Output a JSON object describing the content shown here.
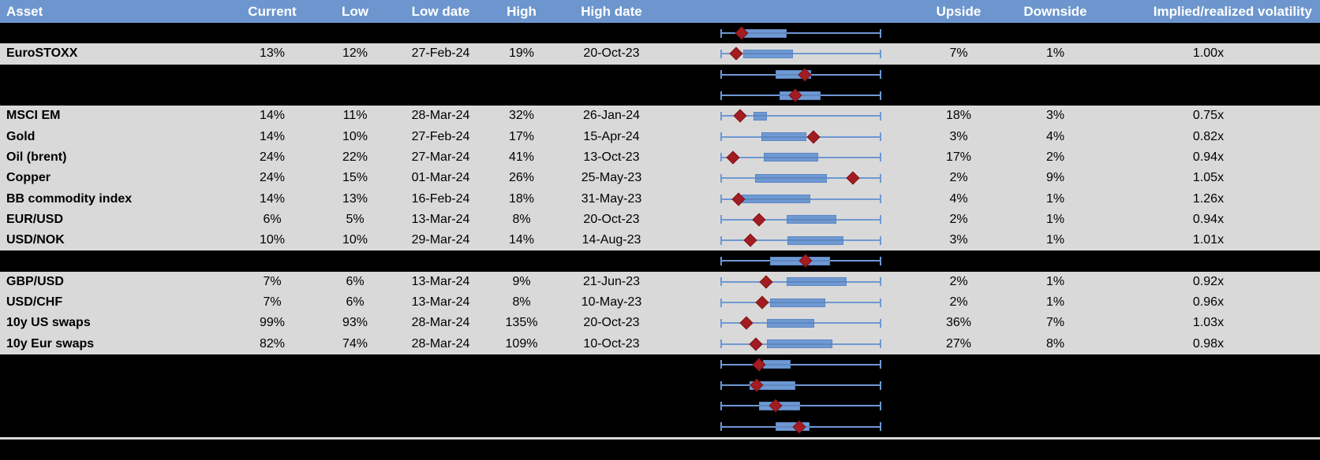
{
  "table": {
    "header": [
      "Asset",
      "Current",
      "Low",
      "Low date",
      "High",
      "High date",
      "",
      "Upside",
      "Downside",
      "Implied/realized volatility"
    ],
    "rows": [
      {
        "type": "dark",
        "asset": "",
        "current": "",
        "low": "",
        "low_date": "",
        "high": "",
        "high_date": "",
        "upside": "",
        "downside": "",
        "iv_rv": "",
        "chart": {
          "whisker_min": 0,
          "whisker_max": 1,
          "box_start": 0.147,
          "box_end": 0.412,
          "marker": 0.132
        }
      },
      {
        "type": "data",
        "asset": "EuroSTOXX",
        "current": "13%",
        "low": "12%",
        "low_date": "27-Feb-24",
        "high": "19%",
        "high_date": "20-Oct-23",
        "upside": "7%",
        "downside": "1%",
        "iv_rv": "1.00x",
        "chart": {
          "whisker_min": 0,
          "whisker_max": 1,
          "box_start": 0.142,
          "box_end": 0.451,
          "marker": 0.098
        }
      },
      {
        "type": "dark",
        "asset": "",
        "current": "",
        "low": "",
        "low_date": "",
        "high": "",
        "high_date": "",
        "upside": "",
        "downside": "",
        "iv_rv": "",
        "chart": {
          "whisker_min": 0,
          "whisker_max": 1,
          "box_start": 0.343,
          "box_end": 0.564,
          "marker": 0.525
        }
      },
      {
        "type": "dark",
        "asset": "",
        "current": "",
        "low": "",
        "low_date": "",
        "high": "",
        "high_date": "",
        "upside": "",
        "downside": "",
        "iv_rv": "",
        "chart": {
          "whisker_min": 0,
          "whisker_max": 1,
          "box_start": 0.368,
          "box_end": 0.623,
          "marker": 0.466
        }
      },
      {
        "type": "data",
        "asset": "MSCI EM",
        "current": "14%",
        "low": "11%",
        "low_date": "28-Mar-24",
        "high": "32%",
        "high_date": "26-Jan-24",
        "upside": "18%",
        "downside": "3%",
        "iv_rv": "0.75x",
        "chart": {
          "whisker_min": 0,
          "whisker_max": 1,
          "box_start": 0.206,
          "box_end": 0.289,
          "marker": 0.123
        }
      },
      {
        "type": "data",
        "asset": "Gold",
        "current": "14%",
        "low": "10%",
        "low_date": "27-Feb-24",
        "high": "17%",
        "high_date": "15-Apr-24",
        "upside": "3%",
        "downside": "4%",
        "iv_rv": "0.82x",
        "chart": {
          "whisker_min": 0,
          "whisker_max": 1,
          "box_start": 0.255,
          "box_end": 0.534,
          "marker": 0.578
        }
      },
      {
        "type": "data",
        "asset": "Oil (brent)",
        "current": "24%",
        "low": "22%",
        "low_date": "27-Mar-24",
        "high": "41%",
        "high_date": "13-Oct-23",
        "upside": "17%",
        "downside": "2%",
        "iv_rv": "0.94x",
        "chart": {
          "whisker_min": 0,
          "whisker_max": 1,
          "box_start": 0.27,
          "box_end": 0.608,
          "marker": 0.078
        }
      },
      {
        "type": "data",
        "asset": "Copper",
        "current": "24%",
        "low": "15%",
        "low_date": "01-Mar-24",
        "high": "26%",
        "high_date": "25-May-23",
        "upside": "2%",
        "downside": "9%",
        "iv_rv": "1.05x",
        "chart": {
          "whisker_min": 0,
          "whisker_max": 1,
          "box_start": 0.216,
          "box_end": 0.662,
          "marker": 0.824
        }
      },
      {
        "type": "data",
        "asset": "BB commodity index",
        "current": "14%",
        "low": "13%",
        "low_date": "16-Feb-24",
        "high": "18%",
        "high_date": "31-May-23",
        "upside": "4%",
        "downside": "1%",
        "iv_rv": "1.26x",
        "chart": {
          "whisker_min": 0,
          "whisker_max": 1,
          "box_start": 0.132,
          "box_end": 0.559,
          "marker": 0.113
        }
      },
      {
        "type": "data",
        "asset": "EUR/USD",
        "current": "6%",
        "low": "5%",
        "low_date": "13-Mar-24",
        "high": "8%",
        "high_date": "20-Oct-23",
        "upside": "2%",
        "downside": "1%",
        "iv_rv": "0.94x",
        "chart": {
          "whisker_min": 0,
          "whisker_max": 1,
          "box_start": 0.412,
          "box_end": 0.721,
          "marker": 0.24
        }
      },
      {
        "type": "data",
        "asset": "USD/NOK",
        "current": "10%",
        "low": "10%",
        "low_date": "29-Mar-24",
        "high": "14%",
        "high_date": "14-Aug-23",
        "upside": "3%",
        "downside": "1%",
        "iv_rv": "1.01x",
        "chart": {
          "whisker_min": 0,
          "whisker_max": 1,
          "box_start": 0.417,
          "box_end": 0.765,
          "marker": 0.186
        }
      },
      {
        "type": "dark",
        "asset": "",
        "current": "",
        "low": "",
        "low_date": "",
        "high": "",
        "high_date": "",
        "upside": "",
        "downside": "",
        "iv_rv": "",
        "chart": {
          "whisker_min": 0,
          "whisker_max": 1,
          "box_start": 0.309,
          "box_end": 0.681,
          "marker": 0.529
        }
      },
      {
        "type": "data",
        "asset": "GBP/USD",
        "current": "7%",
        "low": "6%",
        "low_date": "13-Mar-24",
        "high": "9%",
        "high_date": "21-Jun-23",
        "upside": "2%",
        "downside": "1%",
        "iv_rv": "0.92x",
        "chart": {
          "whisker_min": 0,
          "whisker_max": 1,
          "box_start": 0.412,
          "box_end": 0.784,
          "marker": 0.284
        }
      },
      {
        "type": "data",
        "asset": "USD/CHF",
        "current": "7%",
        "low": "6%",
        "low_date": "13-Mar-24",
        "high": "8%",
        "high_date": "10-May-23",
        "upside": "2%",
        "downside": "1%",
        "iv_rv": "0.96x",
        "chart": {
          "whisker_min": 0,
          "whisker_max": 1,
          "box_start": 0.309,
          "box_end": 0.652,
          "marker": 0.26
        }
      },
      {
        "type": "data",
        "asset": "10y US swaps",
        "current": "99%",
        "low": "93%",
        "low_date": "28-Mar-24",
        "high": "135%",
        "high_date": "20-Oct-23",
        "upside": "36%",
        "downside": "7%",
        "iv_rv": "1.03x",
        "chart": {
          "whisker_min": 0,
          "whisker_max": 1,
          "box_start": 0.289,
          "box_end": 0.583,
          "marker": 0.162
        }
      },
      {
        "type": "data",
        "asset": "10y Eur swaps",
        "current": "82%",
        "low": "74%",
        "low_date": "28-Mar-24",
        "high": "109%",
        "high_date": "10-Oct-23",
        "upside": "27%",
        "downside": "8%",
        "iv_rv": "0.98x",
        "chart": {
          "whisker_min": 0,
          "whisker_max": 1,
          "box_start": 0.289,
          "box_end": 0.696,
          "marker": 0.221
        }
      },
      {
        "type": "dark",
        "asset": "",
        "current": "",
        "low": "",
        "low_date": "",
        "high": "",
        "high_date": "",
        "upside": "",
        "downside": "",
        "iv_rv": "",
        "chart": {
          "whisker_min": 0,
          "whisker_max": 1,
          "box_start": 0.265,
          "box_end": 0.436,
          "marker": 0.24
        }
      },
      {
        "type": "dark",
        "asset": "",
        "current": "",
        "low": "",
        "low_date": "",
        "high": "",
        "high_date": "",
        "upside": "",
        "downside": "",
        "iv_rv": "",
        "chart": {
          "whisker_min": 0,
          "whisker_max": 1,
          "box_start": 0.181,
          "box_end": 0.466,
          "marker": 0.225
        }
      },
      {
        "type": "dark",
        "asset": "",
        "current": "",
        "low": "",
        "low_date": "",
        "high": "",
        "high_date": "",
        "upside": "",
        "downside": "",
        "iv_rv": "",
        "chart": {
          "whisker_min": 0,
          "whisker_max": 1,
          "box_start": 0.24,
          "box_end": 0.495,
          "marker": 0.343
        }
      },
      {
        "type": "dark",
        "asset": "",
        "current": "",
        "low": "",
        "low_date": "",
        "high": "",
        "high_date": "",
        "upside": "",
        "downside": "",
        "iv_rv": "",
        "chart": {
          "whisker_min": 0,
          "whisker_max": 1,
          "box_start": 0.343,
          "box_end": 0.554,
          "marker": 0.49
        }
      }
    ]
  },
  "colors": {
    "header_bg": "#6D96CE",
    "header_text": "#FFFFFF",
    "row_bg": "#D9D9D9",
    "dark_bg": "#000000",
    "box_fill": "#6F99D3",
    "box_border": "#5C86C4",
    "whisker": "#6E98D3",
    "marker": "#A21D21",
    "separator": "#D9D9D9"
  }
}
